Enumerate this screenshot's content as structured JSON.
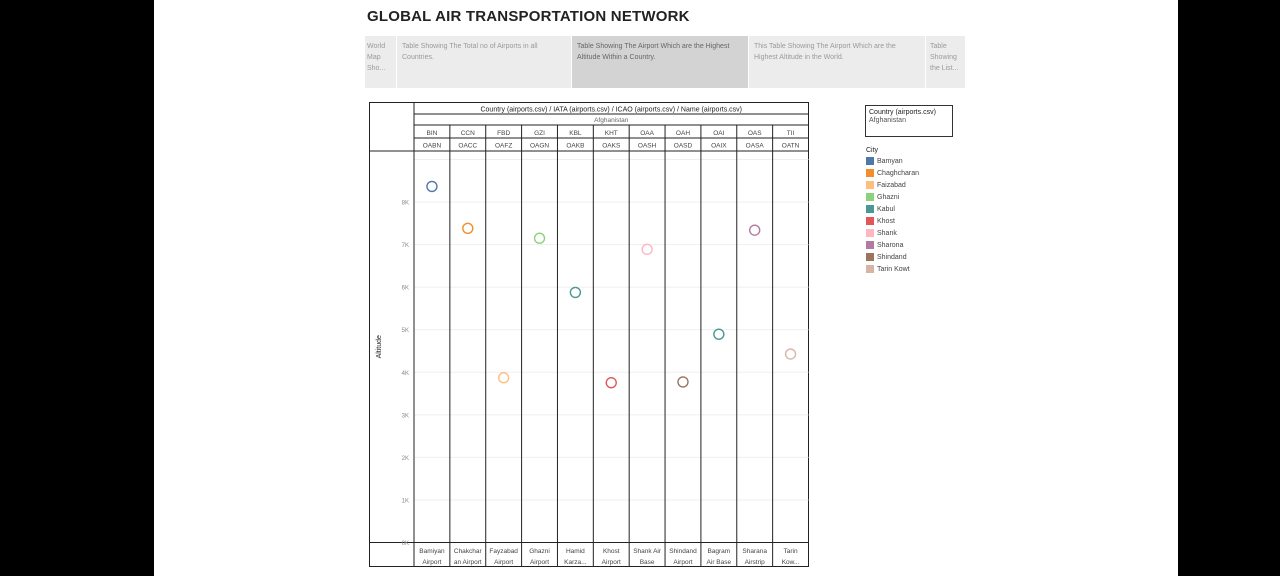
{
  "page_title": "GLOBAL AIR TRANSPORTATION NETWORK",
  "tabs": [
    {
      "label": "World Map Sho..."
    },
    {
      "label": "Table Showing The Total no of Airports in all Countries."
    },
    {
      "label": "Table Showing The Airport Which are the Highest Altitude Within a Country."
    },
    {
      "label": "This Table Showing The Airport Which are the Highest Altitude in the World."
    },
    {
      "label": "Table Showing the List..."
    }
  ],
  "filter": {
    "label": "Country (airports.csv)",
    "value": "Afghanistan"
  },
  "legend": {
    "title": "City",
    "items": [
      {
        "label": "Bamyan",
        "color": "#4e79a7"
      },
      {
        "label": "Chaghcharan",
        "color": "#f28e2b"
      },
      {
        "label": "Faizabad",
        "color": "#ffbe7d"
      },
      {
        "label": "Ghazni",
        "color": "#8cd17d"
      },
      {
        "label": "Kabul",
        "color": "#499894"
      },
      {
        "label": "Khost",
        "color": "#e15759"
      },
      {
        "label": "Shank",
        "color": "#ffb6c1"
      },
      {
        "label": "Sharona",
        "color": "#b07aa1"
      },
      {
        "label": "Shindand",
        "color": "#9c755f"
      },
      {
        "label": "Tarin Kowt",
        "color": "#d7b5a6"
      }
    ]
  },
  "chart_data": {
    "type": "scatter",
    "header_title": "Country (airports.csv) / IATA (airports.csv) / ICAO (airports.csv) / Name (airports.csv)",
    "country": "Afghanistan",
    "ylabel": "Altitude",
    "ylim": [
      0,
      9200
    ],
    "y_ticks": [
      "0K",
      "1K",
      "2K",
      "3K",
      "4K",
      "5K",
      "6K",
      "7K",
      "8K"
    ],
    "columns": [
      {
        "iata": "BIN",
        "icao": "OABN",
        "name": [
          "Bamiyan",
          "Airport"
        ],
        "city": "Bamyan",
        "altitude": 8367
      },
      {
        "iata": "CCN",
        "icao": "OACC",
        "name": [
          "Chakchar",
          "an Airport"
        ],
        "city": "Chaghcharan",
        "altitude": 7383
      },
      {
        "iata": "FBD",
        "icao": "OAFZ",
        "name": [
          "Fayzabad",
          "Airport"
        ],
        "city": "Faizabad",
        "altitude": 3872
      },
      {
        "iata": "GZI",
        "icao": "OAGN",
        "name": [
          "Ghazni",
          "Airport"
        ],
        "city": "Ghazni",
        "altitude": 7150
      },
      {
        "iata": "KBL",
        "icao": "OAKB",
        "name": [
          "Hamid",
          "Karza..."
        ],
        "city": "Kabul",
        "altitude": 5877
      },
      {
        "iata": "KHT",
        "icao": "OAKS",
        "name": [
          "Khost",
          "Airport"
        ],
        "city": "Khost",
        "altitude": 3756
      },
      {
        "iata": "OAA",
        "icao": "OASH",
        "name": [
          "Shank Air",
          "Base"
        ],
        "city": "Shank",
        "altitude": 6890
      },
      {
        "iata": "OAH",
        "icao": "OASD",
        "name": [
          "Shindand",
          "Airport"
        ],
        "city": "Shindand",
        "altitude": 3773
      },
      {
        "iata": "OAI",
        "icao": "OAIX",
        "name": [
          "Bagram",
          "Air Base"
        ],
        "city": "Kabul",
        "altitude": 4895
      },
      {
        "iata": "OAS",
        "icao": "OASA",
        "name": [
          "Sharana",
          "Airstrip"
        ],
        "city": "Sharona",
        "altitude": 7340
      },
      {
        "iata": "TII",
        "icao": "OATN",
        "name": [
          "Tarin",
          "Kow..."
        ],
        "city": "Tarin Kowt",
        "altitude": 4429
      }
    ]
  }
}
